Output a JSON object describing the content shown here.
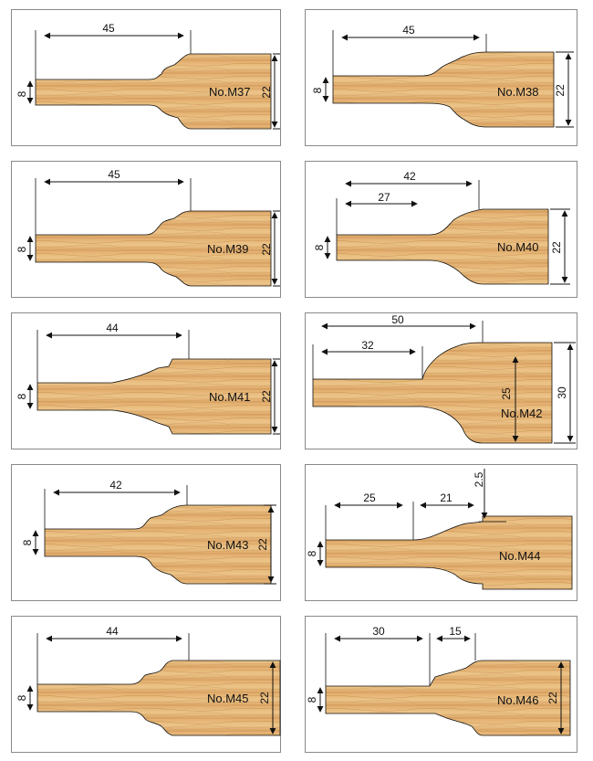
{
  "panels": [
    {
      "model": "No.M37",
      "dims": [
        "45",
        "8",
        "22"
      ]
    },
    {
      "model": "No.M38",
      "dims": [
        "45",
        "8",
        "22"
      ]
    },
    {
      "model": "No.M39",
      "dims": [
        "45",
        "8",
        "22"
      ]
    },
    {
      "model": "No.M40",
      "dims": [
        "42",
        "27",
        "8",
        "22"
      ]
    },
    {
      "model": "No.M41",
      "dims": [
        "44",
        "8",
        "22"
      ]
    },
    {
      "model": "No.M42",
      "dims": [
        "50",
        "32",
        "25",
        "30"
      ]
    },
    {
      "model": "No.M43",
      "dims": [
        "42",
        "8",
        "22"
      ]
    },
    {
      "model": "No.M44",
      "dims": [
        "25",
        "21",
        "2.5",
        "8"
      ]
    },
    {
      "model": "No.M45",
      "dims": [
        "44",
        "8",
        "22"
      ]
    },
    {
      "model": "No.M46",
      "dims": [
        "30",
        "15",
        "8",
        "22"
      ]
    }
  ],
  "colors": {
    "wood_light": "#e9bd7f",
    "wood_mid": "#d9a262",
    "wood_grain": "#b9823f",
    "line": "#111111",
    "border": "#8a8a8a"
  }
}
